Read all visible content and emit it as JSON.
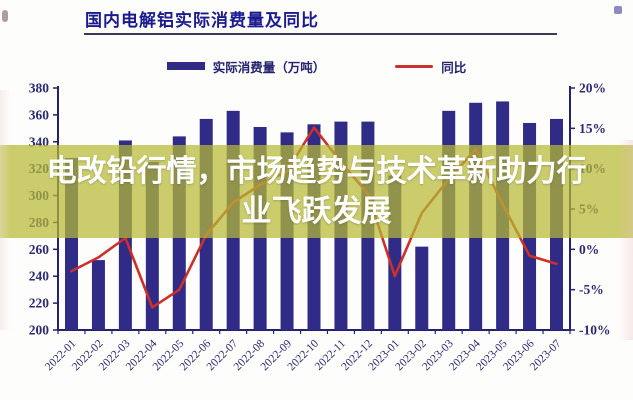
{
  "title": "国内电解铝实际消费量及同比",
  "overlay": {
    "line1": "电改铅行情，市场趋势与技术革新助力行",
    "line2": "业飞跃发展"
  },
  "legend": [
    {
      "label": "实际消费量（万吨）",
      "type": "bar",
      "color": "#2f2b87"
    },
    {
      "label": "同比",
      "type": "line",
      "color": "#cd2f2a"
    }
  ],
  "colors": {
    "bar": "#2f2b87",
    "line": "#cd2f2a",
    "axis": "#23226e",
    "tick_label": "#2b2a72",
    "title": "#1b1a8e",
    "overlay_band": "rgba(183,186,52,0.72)"
  },
  "chart_data": {
    "type": "bar",
    "subtype": "bar+line-dual-axis",
    "title": "国内电解铝实际消费量及同比",
    "categories": [
      "2022-01",
      "2022-02",
      "2022-03",
      "2022-04",
      "2022-05",
      "2022-06",
      "2022-07",
      "2022-08",
      "2022-09",
      "2022-10",
      "2022-11",
      "2022-12",
      "2023-01",
      "2023-02",
      "2023-03",
      "2023-04",
      "2023-05",
      "2023-06",
      "2023-07"
    ],
    "series": [
      {
        "name": "实际消费量（万吨）",
        "type": "bar",
        "axis": "left",
        "values": [
          328,
          252,
          341,
          325,
          344,
          357,
          363,
          351,
          347,
          353,
          355,
          355,
          315,
          262,
          363,
          369,
          370,
          354,
          357
        ]
      },
      {
        "name": "同比",
        "type": "line",
        "axis": "right",
        "unit": "%",
        "values": [
          -2.7,
          -1.0,
          1.4,
          -7.2,
          -5.0,
          1.8,
          5.8,
          8.0,
          9.7,
          15.1,
          10.8,
          6.9,
          -3.3,
          4.5,
          8.7,
          12.4,
          5.6,
          -0.8,
          -1.8
        ]
      }
    ],
    "left_axis": {
      "min": 200,
      "max": 380,
      "step": 20,
      "ticks": [
        380,
        360,
        340,
        320,
        300,
        280,
        260,
        240,
        220,
        200
      ]
    },
    "right_axis": {
      "min": -10,
      "max": 20,
      "step": 5,
      "ticks": [
        "20%",
        "15%",
        "10%",
        "5%",
        "0%",
        "-5%",
        "-10%"
      ]
    },
    "grid": false,
    "legend_position": "top"
  }
}
